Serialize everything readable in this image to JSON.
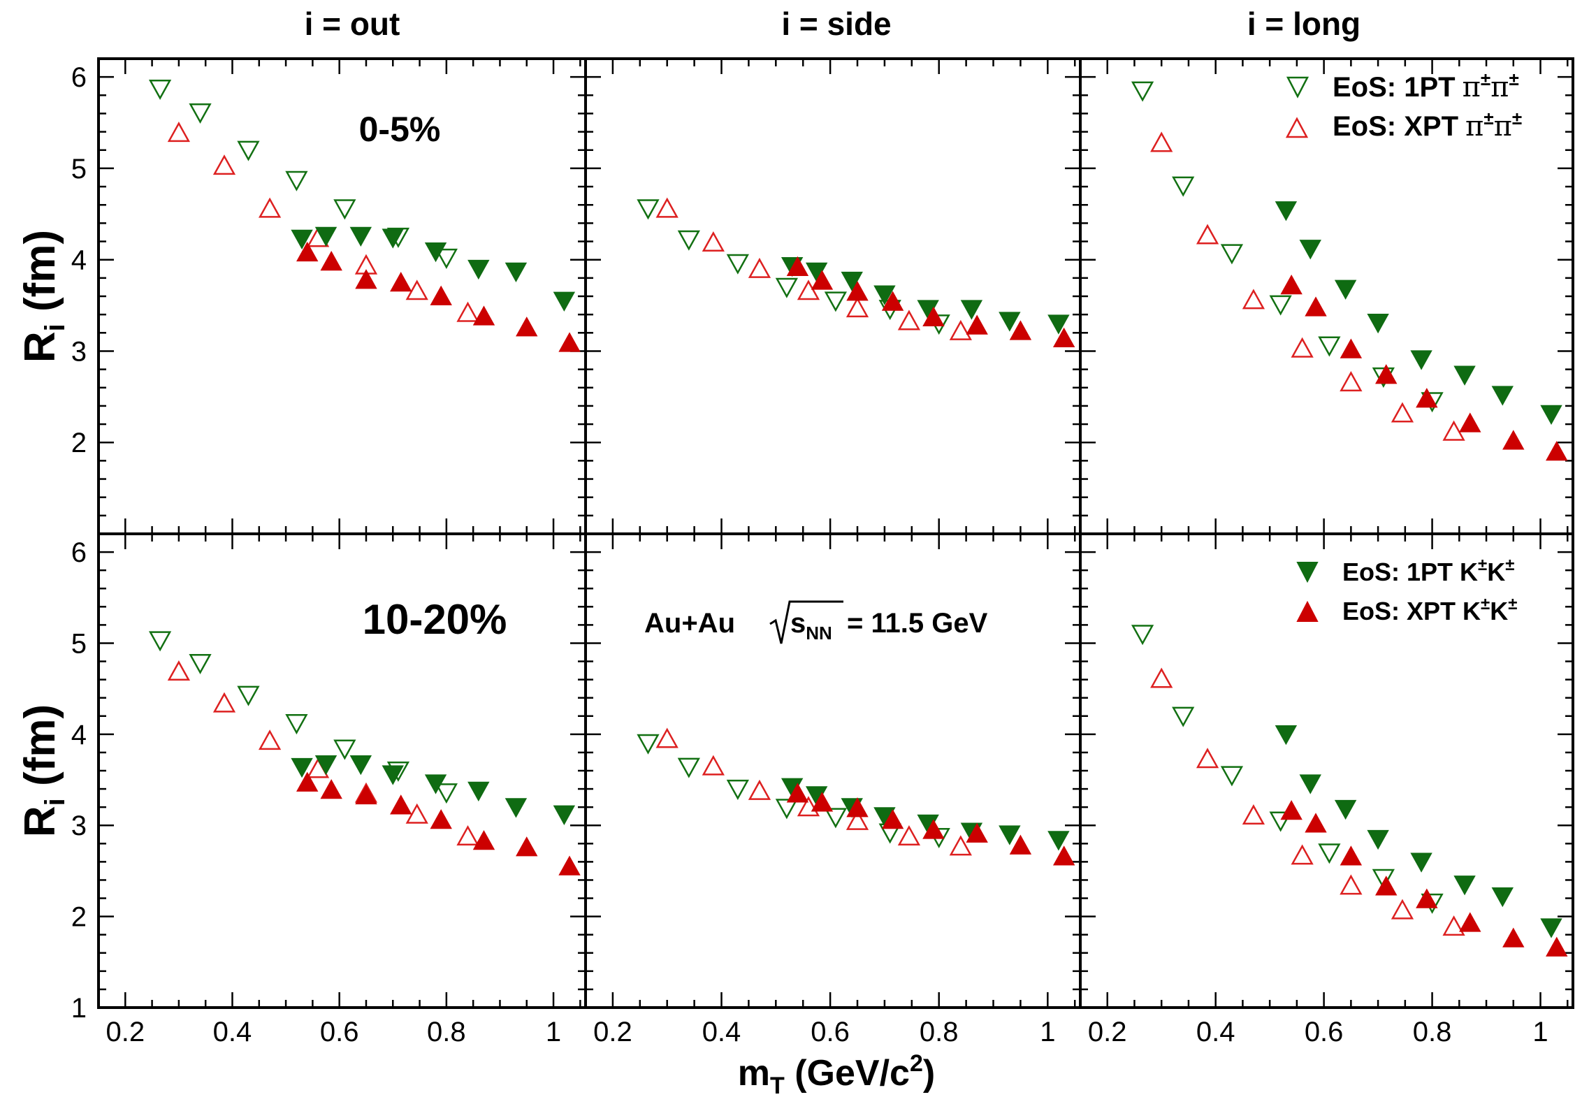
{
  "colors": {
    "pion_1pt": "#127012",
    "pion_xpt": "#dd2020",
    "kaon_1pt": "#0f6b12",
    "kaon_xpt": "#cc0000"
  },
  "chart_data": {
    "type": "scatter",
    "column_titles": [
      "i = out",
      "i = side",
      "i = long"
    ],
    "row_labels": [
      "0-5%",
      "10-20%"
    ],
    "system_label": {
      "prefix": "Au+Au",
      "sqrt": "s",
      "sub": "NN",
      "suffix": "= 11.5 GeV"
    },
    "xlabel": {
      "main": "m",
      "sub": "T",
      "unit": " (GeV/c",
      "sup": "2",
      "close": ")"
    },
    "ylabel": {
      "main": "R",
      "sub": "i",
      "unit": " (fm)"
    },
    "xlim": [
      0.15,
      1.06
    ],
    "ylim": [
      1,
      6.2
    ],
    "x_ticks": [
      "0.2",
      "0.4",
      "0.6",
      "0.8",
      "1"
    ],
    "y_ticks": [
      "1",
      "2",
      "3",
      "4",
      "5",
      "6"
    ],
    "legend": [
      {
        "label": "EoS: 1PT",
        "pair": "ππ",
        "key": "pion_1pt"
      },
      {
        "label": "EoS: XPT",
        "pair": "ππ",
        "key": "pion_xpt"
      },
      {
        "label": "EoS: 1PT",
        "pair": "KK",
        "key": "kaon_1pt"
      },
      {
        "label": "EoS: XPT",
        "pair": "KK",
        "key": "kaon_xpt"
      }
    ],
    "series_info": {
      "pion_1pt": {
        "name": "EoS: 1PT π±π±",
        "marker": "triangle-down",
        "filled": false
      },
      "pion_xpt": {
        "name": "EoS: XPT π±π±",
        "marker": "triangle-up",
        "filled": false
      },
      "kaon_1pt": {
        "name": "EoS: 1PT K±K±",
        "marker": "triangle-down",
        "filled": true
      },
      "kaon_xpt": {
        "name": "EoS: XPT K±K±",
        "marker": "triangle-up",
        "filled": true
      }
    },
    "panels": [
      {
        "row": 0,
        "col": 0,
        "series": {
          "pion_1pt": [
            [
              0.265,
              5.87
            ],
            [
              0.34,
              5.61
            ],
            [
              0.43,
              5.2
            ],
            [
              0.52,
              4.87
            ],
            [
              0.61,
              4.56
            ],
            [
              0.71,
              4.25
            ],
            [
              0.8,
              4.02
            ]
          ],
          "pion_xpt": [
            [
              0.3,
              5.39
            ],
            [
              0.385,
              5.03
            ],
            [
              0.47,
              4.56
            ],
            [
              0.56,
              4.24
            ],
            [
              0.65,
              3.94
            ],
            [
              0.745,
              3.66
            ],
            [
              0.84,
              3.42
            ]
          ],
          "kaon_1pt": [
            [
              0.53,
              4.23
            ],
            [
              0.575,
              4.26
            ],
            [
              0.64,
              4.26
            ],
            [
              0.7,
              4.24
            ],
            [
              0.78,
              4.09
            ],
            [
              0.86,
              3.9
            ],
            [
              0.93,
              3.87
            ],
            [
              1.02,
              3.55
            ]
          ],
          "kaon_xpt": [
            [
              0.54,
              4.08
            ],
            [
              0.585,
              3.98
            ],
            [
              0.65,
              3.78
            ],
            [
              0.715,
              3.75
            ],
            [
              0.79,
              3.6
            ],
            [
              0.87,
              3.38
            ],
            [
              0.95,
              3.26
            ],
            [
              1.03,
              3.09
            ]
          ]
        }
      },
      {
        "row": 0,
        "col": 1,
        "series": {
          "pion_1pt": [
            [
              0.265,
              4.56
            ],
            [
              0.34,
              4.22
            ],
            [
              0.43,
              3.96
            ],
            [
              0.52,
              3.7
            ],
            [
              0.61,
              3.55
            ],
            [
              0.71,
              3.46
            ],
            [
              0.8,
              3.3
            ]
          ],
          "pion_xpt": [
            [
              0.3,
              4.56
            ],
            [
              0.385,
              4.19
            ],
            [
              0.47,
              3.9
            ],
            [
              0.56,
              3.66
            ],
            [
              0.65,
              3.47
            ],
            [
              0.745,
              3.33
            ],
            [
              0.84,
              3.22
            ]
          ],
          "kaon_1pt": [
            [
              0.53,
              3.93
            ],
            [
              0.575,
              3.87
            ],
            [
              0.64,
              3.77
            ],
            [
              0.7,
              3.62
            ],
            [
              0.78,
              3.46
            ],
            [
              0.86,
              3.46
            ],
            [
              0.93,
              3.33
            ],
            [
              1.02,
              3.3
            ]
          ],
          "kaon_xpt": [
            [
              0.54,
              3.92
            ],
            [
              0.585,
              3.77
            ],
            [
              0.65,
              3.65
            ],
            [
              0.715,
              3.54
            ],
            [
              0.79,
              3.37
            ],
            [
              0.87,
              3.28
            ],
            [
              0.95,
              3.22
            ],
            [
              1.03,
              3.14
            ]
          ]
        }
      },
      {
        "row": 0,
        "col": 2,
        "series": {
          "pion_1pt": [
            [
              0.265,
              5.85
            ],
            [
              0.34,
              4.81
            ],
            [
              0.43,
              4.07
            ],
            [
              0.52,
              3.51
            ],
            [
              0.61,
              3.06
            ],
            [
              0.71,
              2.72
            ],
            [
              0.8,
              2.45
            ]
          ],
          "pion_xpt": [
            [
              0.3,
              5.28
            ],
            [
              0.385,
              4.27
            ],
            [
              0.47,
              3.56
            ],
            [
              0.56,
              3.03
            ],
            [
              0.65,
              2.66
            ],
            [
              0.745,
              2.32
            ],
            [
              0.84,
              2.12
            ]
          ],
          "kaon_1pt": [
            [
              0.53,
              4.54
            ],
            [
              0.575,
              4.12
            ],
            [
              0.64,
              3.68
            ],
            [
              0.7,
              3.31
            ],
            [
              0.78,
              2.91
            ],
            [
              0.86,
              2.74
            ],
            [
              0.93,
              2.52
            ],
            [
              1.02,
              2.31
            ]
          ],
          "kaon_xpt": [
            [
              0.54,
              3.72
            ],
            [
              0.585,
              3.48
            ],
            [
              0.65,
              3.02
            ],
            [
              0.715,
              2.74
            ],
            [
              0.79,
              2.48
            ],
            [
              0.87,
              2.21
            ],
            [
              0.95,
              2.02
            ],
            [
              1.03,
              1.9
            ]
          ]
        }
      },
      {
        "row": 1,
        "col": 0,
        "series": {
          "pion_1pt": [
            [
              0.265,
              5.03
            ],
            [
              0.34,
              4.78
            ],
            [
              0.43,
              4.43
            ],
            [
              0.52,
              4.12
            ],
            [
              0.61,
              3.84
            ],
            [
              0.71,
              3.6
            ],
            [
              0.8,
              3.36
            ]
          ],
          "pion_xpt": [
            [
              0.3,
              4.69
            ],
            [
              0.385,
              4.34
            ],
            [
              0.47,
              3.93
            ],
            [
              0.56,
              3.62
            ],
            [
              0.65,
              3.35
            ],
            [
              0.745,
              3.12
            ],
            [
              0.84,
              2.88
            ]
          ],
          "kaon_1pt": [
            [
              0.53,
              3.64
            ],
            [
              0.575,
              3.67
            ],
            [
              0.64,
              3.67
            ],
            [
              0.7,
              3.56
            ],
            [
              0.78,
              3.46
            ],
            [
              0.86,
              3.38
            ],
            [
              0.93,
              3.2
            ],
            [
              1.02,
              3.12
            ]
          ],
          "kaon_xpt": [
            [
              0.54,
              3.47
            ],
            [
              0.585,
              3.39
            ],
            [
              0.65,
              3.33
            ],
            [
              0.715,
              3.22
            ],
            [
              0.79,
              3.06
            ],
            [
              0.87,
              2.83
            ],
            [
              0.95,
              2.76
            ],
            [
              1.03,
              2.55
            ]
          ]
        }
      },
      {
        "row": 1,
        "col": 1,
        "series": {
          "pion_1pt": [
            [
              0.265,
              3.9
            ],
            [
              0.34,
              3.64
            ],
            [
              0.43,
              3.4
            ],
            [
              0.52,
              3.19
            ],
            [
              0.61,
              3.09
            ],
            [
              0.71,
              2.92
            ],
            [
              0.8,
              2.87
            ]
          ],
          "pion_xpt": [
            [
              0.3,
              3.95
            ],
            [
              0.385,
              3.65
            ],
            [
              0.47,
              3.38
            ],
            [
              0.56,
              3.2
            ],
            [
              0.65,
              3.05
            ],
            [
              0.745,
              2.88
            ],
            [
              0.84,
              2.77
            ]
          ],
          "kaon_1pt": [
            [
              0.53,
              3.42
            ],
            [
              0.575,
              3.33
            ],
            [
              0.64,
              3.2
            ],
            [
              0.7,
              3.1
            ],
            [
              0.78,
              3.02
            ],
            [
              0.86,
              2.93
            ],
            [
              0.93,
              2.9
            ],
            [
              1.02,
              2.84
            ]
          ],
          "kaon_xpt": [
            [
              0.54,
              3.35
            ],
            [
              0.585,
              3.25
            ],
            [
              0.65,
              3.19
            ],
            [
              0.715,
              3.06
            ],
            [
              0.79,
              2.95
            ],
            [
              0.87,
              2.91
            ],
            [
              0.95,
              2.78
            ],
            [
              1.03,
              2.66
            ]
          ]
        }
      },
      {
        "row": 1,
        "col": 2,
        "series": {
          "pion_1pt": [
            [
              0.265,
              5.1
            ],
            [
              0.34,
              4.2
            ],
            [
              0.43,
              3.55
            ],
            [
              0.52,
              3.05
            ],
            [
              0.61,
              2.7
            ],
            [
              0.71,
              2.42
            ],
            [
              0.8,
              2.15
            ]
          ],
          "pion_xpt": [
            [
              0.3,
              4.61
            ],
            [
              0.385,
              3.73
            ],
            [
              0.47,
              3.11
            ],
            [
              0.56,
              2.67
            ],
            [
              0.65,
              2.34
            ],
            [
              0.745,
              2.07
            ],
            [
              0.84,
              1.89
            ]
          ],
          "kaon_1pt": [
            [
              0.53,
              4.0
            ],
            [
              0.575,
              3.46
            ],
            [
              0.64,
              3.18
            ],
            [
              0.7,
              2.85
            ],
            [
              0.78,
              2.6
            ],
            [
              0.86,
              2.35
            ],
            [
              0.93,
              2.22
            ],
            [
              1.02,
              1.88
            ]
          ],
          "kaon_xpt": [
            [
              0.54,
              3.16
            ],
            [
              0.585,
              3.02
            ],
            [
              0.65,
              2.66
            ],
            [
              0.715,
              2.33
            ],
            [
              0.79,
              2.19
            ],
            [
              0.87,
              1.93
            ],
            [
              0.95,
              1.76
            ],
            [
              1.03,
              1.66
            ]
          ]
        }
      }
    ]
  }
}
